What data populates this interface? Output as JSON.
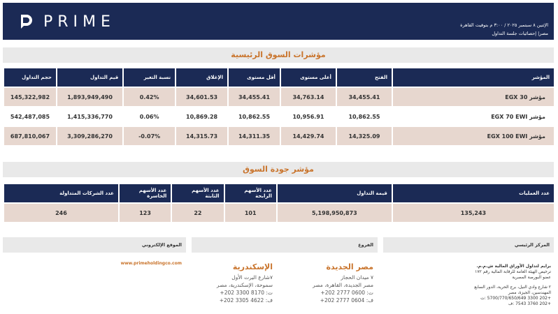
{
  "header": {
    "brand": "PRIME",
    "date_line": "الإثنين ٨ سبتمبر ٢٠٢٥ / ٣:٠٠ م بتوقيت القاهرة",
    "subtitle": "مصر| إحصائيات جلسة التداول"
  },
  "indices": {
    "title": "مؤشرات السوق الرئيسية",
    "columns": {
      "index": "المؤشر",
      "open": "الفتح",
      "high": "أعلى مستوى",
      "low": "أقل مستوى",
      "close": "الإغلاق",
      "change": "نسبة التغير",
      "value": "قيم التداول",
      "volume": "حجم التداول"
    },
    "rows": [
      {
        "index": "مؤشر EGX 30",
        "open": "34,455.41",
        "high": "34,763.14",
        "low": "34,455.41",
        "close": "34,601.53",
        "change": "0.42%",
        "value": "1,893,949,490",
        "volume": "145,322,982"
      },
      {
        "index": "مؤشر EGX 70 EWI",
        "open": "10,862.55",
        "high": "10,956.91",
        "low": "10,862.55",
        "close": "10,869.28",
        "change": "0.06%",
        "value": "1,415,336,770",
        "volume": "542,487,085"
      },
      {
        "index": "مؤشر EGX 100 EWI",
        "open": "14,325.09",
        "high": "14,429.74",
        "low": "14,311.35",
        "close": "14,315.73",
        "change": "-0.07%",
        "value": "3,309,286,270",
        "volume": "687,810,067"
      }
    ]
  },
  "quality": {
    "title": "مؤشر جودة السوق",
    "columns": {
      "deals": "عدد العمليات",
      "turnover": "قيمة التداول",
      "gainers": "عدد الأسهم الرابحة",
      "unchanged": "عدد الأسهم الثابتة",
      "losers": "عدد الأسهم الخاسرة",
      "traded": "عدد الشركات المتداولة"
    },
    "row": {
      "deals": "135,243",
      "turnover": "5,198,950,873",
      "gainers": "101",
      "unchanged": "22",
      "losers": "123",
      "traded": "246"
    }
  },
  "footer": {
    "website_label": "الموقع الإلكتروني",
    "branches_label": "الفروع",
    "hq_label": "المركز الرئيسي",
    "website": "www.primeholdingco.com",
    "alex": {
      "city": "الإسكندرية",
      "addr1": "٧شارع اليرت الأول",
      "addr2": "سموحة، الإسكندرية، مصر",
      "tel": "ت: 8170 3300 202+",
      "fax": "ف: 4622 3305 202+"
    },
    "heliopolis": {
      "city": "مصر الجديدة",
      "addr1": "٧ ميدان الحجاز",
      "addr2": "مصر الجديدة، القاهرة، مصر",
      "tel": "ت: 0600 2777 202+",
      "fax": "ف: 0604 2777 202+"
    },
    "hq": {
      "company": "برايم لتداول الأوراق المالية ش.م.م.",
      "license1": "ترخيص الهيئة العامة للرقابة المالية رقم ١٧٢",
      "license2": "عضو البورصة المصرية",
      "addr1": "٢ شارع وادي النيل، برج الحرية، الدور السابع",
      "addr2": "المهندسين، الجيزة، مصر",
      "tel": "+202 3300 5700/770/650/649 :ت",
      "fax": "+202 3760 7543 :ف"
    }
  }
}
